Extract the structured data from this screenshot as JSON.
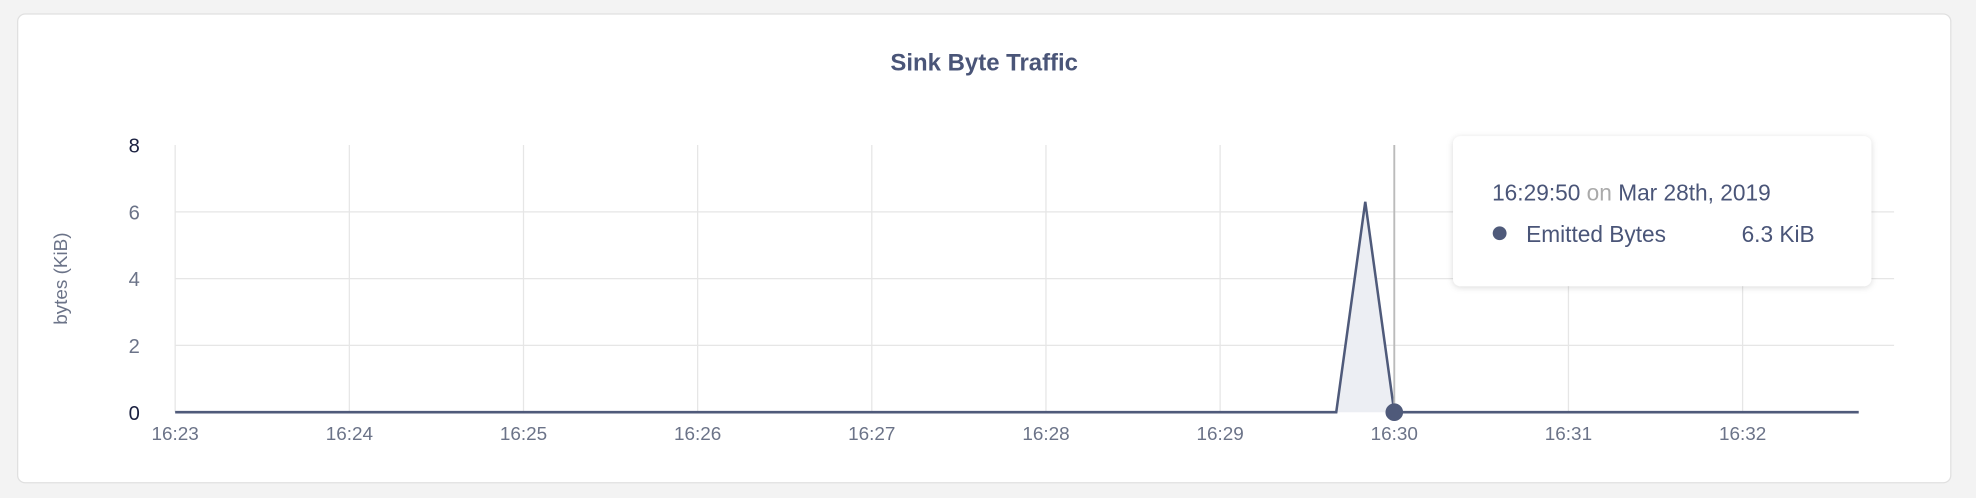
{
  "chart_data": {
    "type": "area",
    "title": "Sink Byte Traffic",
    "ylabel": "bytes (KiB)",
    "xlabel": "",
    "ylim": [
      0,
      8
    ],
    "xlim": [
      "16:23:00",
      "16:32:40"
    ],
    "y_ticks": [
      "0",
      "2",
      "4",
      "6",
      "8"
    ],
    "x_ticks": [
      "16:23",
      "16:24",
      "16:25",
      "16:26",
      "16:27",
      "16:28",
      "16:29",
      "16:30",
      "16:31",
      "16:32"
    ],
    "grid": true,
    "series": [
      {
        "name": "Emitted Bytes",
        "color": "#4f5a7a",
        "fill": "#eceef3",
        "points": [
          {
            "x": "16:23:00",
            "y": 0
          },
          {
            "x": "16:29:40",
            "y": 0
          },
          {
            "x": "16:29:50",
            "y": 6.3
          },
          {
            "x": "16:30:00",
            "y": 0
          },
          {
            "x": "16:32:40",
            "y": 0
          }
        ]
      }
    ],
    "hover_marker": {
      "x": "16:30:00",
      "y": 0
    }
  },
  "tooltip": {
    "time": "16:29:50",
    "on": "on",
    "date": "Mar 28th, 2019",
    "series_name": "Emitted Bytes",
    "value": "6.3 KiB"
  },
  "colors": {
    "text": "#4a5578",
    "muted": "#aaaaaa",
    "grid": "#e6e6e6"
  }
}
